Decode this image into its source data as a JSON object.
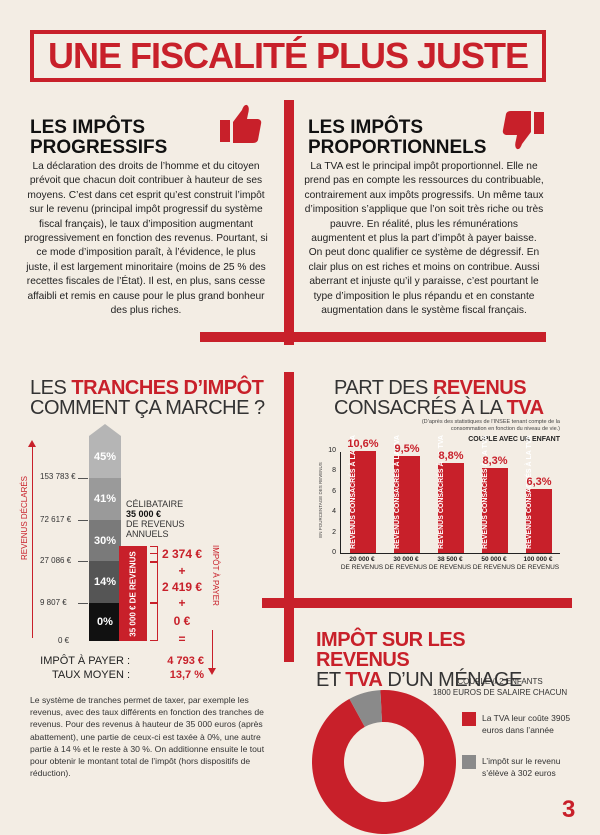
{
  "title": "UNE FISCALITÉ PLUS JUSTE",
  "progressive": {
    "heading_l1": "LES IMPÔTS",
    "heading_l2": "PROGRESSIFS",
    "icon": "thumbs-up-icon",
    "text": "La déclaration des droits de l’homme et du citoyen prévoit que chacun doit contribuer à hauteur de ses moyens. C’est dans cet esprit qu’est construit l’impôt sur le revenu (principal impôt progressif du système fiscal français), le taux d’imposition augmentant progressivement en fonction des revenus. Pourtant, si ce mode d’imposition paraît, à l’évidence, le plus juste, il est largement minoritaire (moins de 25 % des recettes fiscales de l’État). Il est, en plus, sans cesse affaibli et remis en cause pour le plus grand bonheur des plus riches."
  },
  "proportional": {
    "heading_l1": "LES IMPÔTS",
    "heading_l2": "PROPORTIONNELS",
    "icon": "thumbs-down-icon",
    "text": "La TVA est le principal impôt proportionnel. Elle ne prend pas en compte les ressources du contribuable, contrairement aux impôts progressifs. Un même taux d’imposition s’applique que l’on soit très riche ou très pauvre. En réalité, plus les rémunérations augmentent et plus la part d’impôt à payer baisse. On peut donc qualifier ce système de dégressif. En clair plus on est riches et moins on contribue. Aussi aberrant et injuste qu’il y paraisse, c’est pourtant le type d’imposition le plus répandu et en constante augmentation dans le système fiscal français."
  },
  "tranches": {
    "title_pre": "LES ",
    "title_red": "TRANCHES D’IMPÔT",
    "title_l2": "COMMENT ÇA MARCHE ?",
    "side_left": "REVENUS DÉCLARÉS",
    "side_right": "IMPÔT À PAYER",
    "thresholds": [
      "153 783 €",
      "72 617 €",
      "27 086 €",
      "9 807 €",
      "0 €"
    ],
    "rates": [
      "45%",
      "41%",
      "30%",
      "14%",
      "0%"
    ],
    "celib_l1": "CÉLIBATAIRE",
    "celib_l2": "35 000 €",
    "celib_l3": "DE REVENUS",
    "celib_l4": "ANNUELS",
    "revenue_box": "35 000 € DE REVENUS",
    "calc": [
      "2 374 €",
      "+",
      "2 419 €",
      "+",
      "0 €",
      "="
    ],
    "impot_label": "IMPÔT À PAYER :",
    "impot_value": "4 793 €",
    "taux_label": "TAUX MOYEN :",
    "taux_value": "13,7 %",
    "explain": "Le système de tranches permet de taxer, par exemple les revenus, avec des taux différents en fonction des tranches de revenus. Pour des revenus à hauteur de 35 000 euros (après abattement), une partie de ceux-ci est taxée à 0%, une autre partie à 14 % et le reste à 30 %. On additionne ensuite le tout pour obtenir le montant total de l’impôt (hors dispositifs de réduction)."
  },
  "chart_data": [
    {
      "type": "bar",
      "title_l1_pre": "PART DES ",
      "title_l1_red": "REVENUS",
      "title_l2_pre": "CONSACRÉS À LA ",
      "title_l2_red": "TVA",
      "note": "(D’après des statistiques de l’INSEE tenant compte de la consommation en fonction du niveau de vie.)",
      "subtitle": "COUPLE AVEC UN ENFANT",
      "ylabel": "EN POURCENTAGE DES REVENUS",
      "ylim": [
        0,
        10
      ],
      "yticks": [
        "0",
        "2",
        "4",
        "6",
        "8",
        "10"
      ],
      "categories": [
        "20 000 €",
        "30 000 €",
        "38 500 €",
        "50 000 €",
        "100 000 €"
      ],
      "category_sub": "DE REVENUS",
      "values": [
        10.6,
        9.5,
        8.8,
        8.3,
        6.3
      ],
      "value_labels": [
        "10,6%",
        "9,5%",
        "8,8%",
        "8,3%",
        "6,3%"
      ],
      "bar_text": "REVENUS CONSACRÉS À LA TVA",
      "color": "#c8202a"
    },
    {
      "type": "pie",
      "title_l1": "IMPÔT SUR LES REVENUS",
      "title_l2_pre": "ET ",
      "title_l2_red": "TVA",
      "title_l2_post": " D’UN MÉNAGE",
      "desc_l1": "COUPLE // 2 ENFANTS",
      "desc_l2": "1800 EUROS DE SALAIRE CHACUN",
      "slices": [
        {
          "label": "La TVA leur coûte 3905 euros dans l’année",
          "value": 3905,
          "color": "#c8202a"
        },
        {
          "label": "L’impôt sur le revenu s’élève à 302 euros",
          "value": 302,
          "color": "#8a8a8a"
        }
      ]
    }
  ],
  "page_number": "3"
}
